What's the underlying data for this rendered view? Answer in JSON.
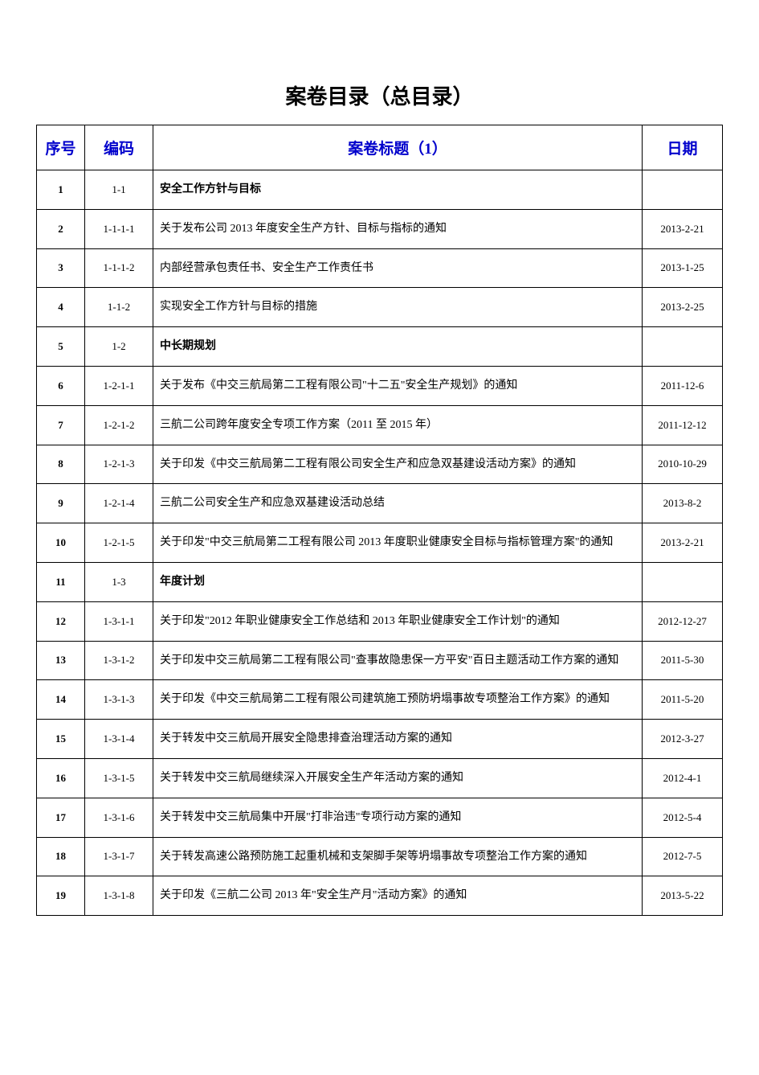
{
  "page_title": "案卷目录（总目录）",
  "headers": {
    "seq": "序号",
    "code": "编码",
    "title": "案卷标题（1）",
    "date": "日期"
  },
  "style": {
    "title_color": "#000000",
    "title_fontsize": 26,
    "header_color": "#0000cc",
    "header_fontsize": 19,
    "border_color": "#000000",
    "background_color": "#ffffff",
    "body_fontsize": 14,
    "seq_fontsize": 13,
    "code_fontsize": 13,
    "date_fontsize": 13,
    "col_widths": {
      "seq": 60,
      "code": 85,
      "date": 100
    }
  },
  "rows": [
    {
      "seq": "1",
      "code": "1-1",
      "title": "安全工作方针与目标",
      "date": "",
      "section": true
    },
    {
      "seq": "2",
      "code": "1-1-1-1",
      "title": "关于发布公司 2013 年度安全生产方针、目标与指标的通知",
      "date": "2013-2-21",
      "section": false
    },
    {
      "seq": "3",
      "code": "1-1-1-2",
      "title": "内部经营承包责任书、安全生产工作责任书",
      "date": "2013-1-25",
      "section": false
    },
    {
      "seq": "4",
      "code": "1-1-2",
      "title": "实现安全工作方针与目标的措施",
      "date": "2013-2-25",
      "section": false
    },
    {
      "seq": "5",
      "code": "1-2",
      "title": "中长期规划",
      "date": "",
      "section": true
    },
    {
      "seq": "6",
      "code": "1-2-1-1",
      "title": "关于发布《中交三航局第二工程有限公司\"十二五\"安全生产规划》的通知",
      "date": "2011-12-6",
      "section": false
    },
    {
      "seq": "7",
      "code": "1-2-1-2",
      "title": "三航二公司跨年度安全专项工作方案（2011 至 2015 年）",
      "date": "2011-12-12",
      "section": false
    },
    {
      "seq": "8",
      "code": "1-2-1-3",
      "title": "关于印发《中交三航局第二工程有限公司安全生产和应急双基建设活动方案》的通知",
      "date": "2010-10-29",
      "section": false
    },
    {
      "seq": "9",
      "code": "1-2-1-4",
      "title": "三航二公司安全生产和应急双基建设活动总结",
      "date": "2013-8-2",
      "section": false
    },
    {
      "seq": "10",
      "code": "1-2-1-5",
      "title": "关于印发\"中交三航局第二工程有限公司 2013 年度职业健康安全目标与指标管理方案\"的通知",
      "date": "2013-2-21",
      "section": false
    },
    {
      "seq": "11",
      "code": "1-3",
      "title": "年度计划",
      "date": "",
      "section": true
    },
    {
      "seq": "12",
      "code": "1-3-1-1",
      "title": "关于印发\"2012 年职业健康安全工作总结和 2013 年职业健康安全工作计划\"的通知",
      "date": "2012-12-27",
      "section": false
    },
    {
      "seq": "13",
      "code": "1-3-1-2",
      "title": "关于印发中交三航局第二工程有限公司\"查事故隐患保一方平安\"百日主题活动工作方案的通知",
      "date": "2011-5-30",
      "section": false
    },
    {
      "seq": "14",
      "code": "1-3-1-3",
      "title": "关于印发《中交三航局第二工程有限公司建筑施工预防坍塌事故专项整治工作方案》的通知",
      "date": "2011-5-20",
      "section": false
    },
    {
      "seq": "15",
      "code": "1-3-1-4",
      "title": "关于转发中交三航局开展安全隐患排查治理活动方案的通知",
      "date": "2012-3-27",
      "section": false
    },
    {
      "seq": "16",
      "code": "1-3-1-5",
      "title": "关于转发中交三航局继续深入开展安全生产年活动方案的通知",
      "date": "2012-4-1",
      "section": false
    },
    {
      "seq": "17",
      "code": "1-3-1-6",
      "title": "关于转发中交三航局集中开展\"打非治违\"专项行动方案的通知",
      "date": "2012-5-4",
      "section": false
    },
    {
      "seq": "18",
      "code": "1-3-1-7",
      "title": "关于转发高速公路预防施工起重机械和支架脚手架等坍塌事故专项整治工作方案的通知",
      "date": "2012-7-5",
      "section": false
    },
    {
      "seq": "19",
      "code": "1-3-1-8",
      "title": "关于印发《三航二公司 2013 年\"安全生产月\"活动方案》的通知",
      "date": "2013-5-22",
      "section": false
    }
  ]
}
